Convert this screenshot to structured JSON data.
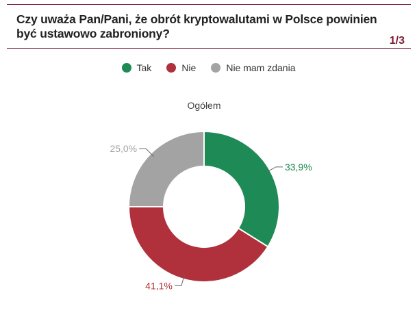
{
  "header": {
    "title": "Czy uważa Pan/Pani, że obrót kryptowalutami w Polsce powinien być ustawowo zabroniony?",
    "page_indicator": "1/3"
  },
  "colors": {
    "accent": "#7a1c33",
    "tak": "#1e8a56",
    "nie": "#b0313b",
    "nie_mam_zdania": "#a3a3a3"
  },
  "chart_data": {
    "type": "pie",
    "title": "Ogółem",
    "donut": true,
    "legend_position": "top-center",
    "series": [
      {
        "name": "Tak",
        "value": 33.9,
        "label": "33,9%",
        "color": "#1e8a56"
      },
      {
        "name": "Nie",
        "value": 41.1,
        "label": "41,1%",
        "color": "#b0313b"
      },
      {
        "name": "Nie mam zdania",
        "value": 25.0,
        "label": "25,0%",
        "color": "#a3a3a3"
      }
    ]
  }
}
